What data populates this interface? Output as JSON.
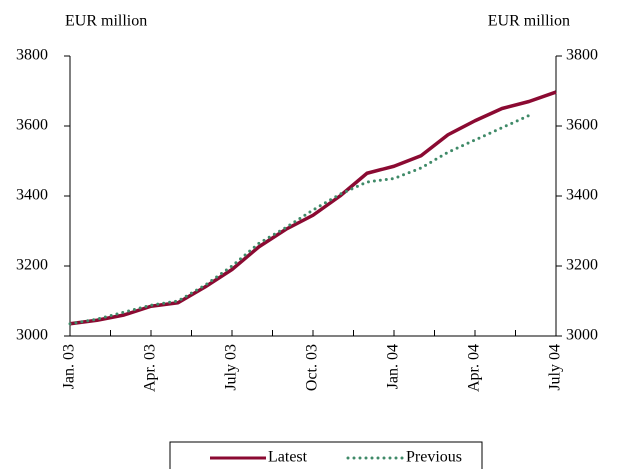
{
  "chart_data": {
    "type": "line",
    "y_label": "EUR million",
    "y2_label": "EUR million",
    "categories": [
      "Jan. 03",
      null,
      null,
      "Apr. 03",
      null,
      null,
      "July 03",
      null,
      null,
      "Oct. 03",
      null,
      null,
      "Jan. 04",
      null,
      null,
      "Apr. 04",
      null,
      null,
      "July 04"
    ],
    "series": [
      {
        "name": "Latest",
        "color": "#8b0a32",
        "style": "solid",
        "values": [
          3035,
          3045,
          3060,
          3085,
          3095,
          3140,
          3190,
          3255,
          3305,
          3345,
          3400,
          3465,
          3485,
          3515,
          3575,
          3615,
          3650,
          3670,
          3697
        ]
      },
      {
        "name": "Previous",
        "color": "#3f8a68",
        "style": "dotted",
        "values": [
          3035,
          3048,
          3068,
          3088,
          3100,
          3145,
          3200,
          3265,
          3310,
          3360,
          3405,
          3440,
          3450,
          3480,
          3525,
          3560,
          3595,
          3630,
          null
        ]
      }
    ],
    "ylim": [
      3000,
      3800
    ],
    "yticks": [
      3000,
      3200,
      3400,
      3600,
      3800
    ],
    "y2lim": [
      3000,
      3800
    ],
    "y2ticks": [
      3000,
      3200,
      3400,
      3600,
      3800
    ],
    "legend": "bottom"
  }
}
